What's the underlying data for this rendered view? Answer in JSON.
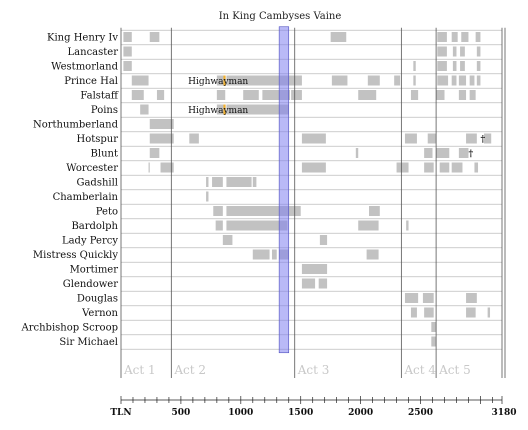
{
  "chart_data": {
    "type": "gantt",
    "title": "In King Cambyses Vaine",
    "xlabel": "TLN",
    "xlim": [
      0,
      3180
    ],
    "xticks_labeled": [
      500,
      1000,
      1500,
      2000,
      2500
    ],
    "xtick_major_step": 100,
    "xmax_label": "3180",
    "acts": [
      {
        "name": "Act 1",
        "start": 0,
        "end": 420
      },
      {
        "name": "Act 2",
        "start": 420,
        "end": 1450
      },
      {
        "name": "Act 3",
        "start": 1450,
        "end": 2340
      },
      {
        "name": "Act 4",
        "start": 2340,
        "end": 2630
      },
      {
        "name": "Act 5",
        "start": 2630,
        "end": 3180
      }
    ],
    "highlight": {
      "start": 1320,
      "end": 1400,
      "color": "#8080f0"
    },
    "colors": {
      "bar": "#c2c2c2",
      "accent": "#f0b030",
      "grid": "#bdbdbd",
      "act_line": "#555555"
    },
    "characters": [
      {
        "name": "King Henry Iv",
        "spans": [
          [
            20,
            90
          ],
          [
            240,
            320
          ],
          [
            1750,
            1880
          ],
          [
            2640,
            2720
          ],
          [
            2760,
            2810
          ],
          [
            2840,
            2900
          ],
          [
            2960,
            3000
          ]
        ]
      },
      {
        "name": "Lancaster",
        "spans": [
          [
            20,
            90
          ],
          [
            2640,
            2720
          ],
          [
            2770,
            2800
          ],
          [
            2830,
            2870
          ],
          [
            2970,
            3000
          ]
        ]
      },
      {
        "name": "Westmorland",
        "spans": [
          [
            20,
            90
          ],
          [
            2440,
            2460
          ],
          [
            2640,
            2720
          ],
          [
            2770,
            2800
          ],
          [
            2830,
            2870
          ],
          [
            2970,
            3000
          ]
        ]
      },
      {
        "name": "Prince Hal",
        "spans": [
          [
            90,
            230
          ],
          [
            800,
            870
          ],
          [
            880,
            1510
          ],
          [
            1760,
            1890
          ],
          [
            2060,
            2160
          ],
          [
            2280,
            2330
          ],
          [
            2440,
            2460
          ],
          [
            2640,
            2730
          ],
          [
            2760,
            2800
          ],
          [
            2820,
            2880
          ],
          [
            2910,
            2950
          ],
          [
            2970,
            3000
          ]
        ]
      },
      {
        "name": "Falstaff",
        "spans": [
          [
            90,
            190
          ],
          [
            300,
            360
          ],
          [
            800,
            870
          ],
          [
            1020,
            1150
          ],
          [
            1180,
            1410
          ],
          [
            1420,
            1500
          ],
          [
            1490,
            1510
          ],
          [
            1980,
            2130
          ],
          [
            2420,
            2480
          ],
          [
            2630,
            2700
          ],
          [
            2820,
            2880
          ],
          [
            2910,
            2960
          ]
        ]
      },
      {
        "name": "Poins",
        "spans": [
          [
            160,
            230
          ],
          [
            800,
            870
          ],
          [
            880,
            1400
          ]
        ]
      },
      {
        "name": "Northumberland",
        "spans": [
          [
            240,
            440
          ]
        ]
      },
      {
        "name": "Hotspur",
        "spans": [
          [
            240,
            440
          ],
          [
            570,
            650
          ],
          [
            1510,
            1710
          ],
          [
            2370,
            2470
          ],
          [
            2560,
            2630
          ],
          [
            2880,
            2970
          ],
          [
            3030,
            3090
          ]
        ]
      },
      {
        "name": "Blunt",
        "spans": [
          [
            240,
            320
          ],
          [
            1960,
            1980
          ],
          [
            2530,
            2600
          ],
          [
            2630,
            2740
          ],
          [
            2820,
            2900
          ]
        ]
      },
      {
        "name": "Worcester",
        "spans": [
          [
            230,
            240
          ],
          [
            330,
            440
          ],
          [
            1510,
            1710
          ],
          [
            2300,
            2400
          ],
          [
            2530,
            2610
          ],
          [
            2660,
            2740
          ],
          [
            2760,
            2850
          ],
          [
            2950,
            2980
          ]
        ]
      },
      {
        "name": "Gadshill",
        "spans": [
          [
            710,
            730
          ],
          [
            760,
            850
          ],
          [
            880,
            1090
          ],
          [
            1100,
            1130
          ]
        ]
      },
      {
        "name": "Chamberlain",
        "spans": [
          [
            710,
            730
          ]
        ]
      },
      {
        "name": "Peto",
        "spans": [
          [
            770,
            850
          ],
          [
            880,
            1500
          ],
          [
            2070,
            2160
          ]
        ]
      },
      {
        "name": "Bardolph",
        "spans": [
          [
            790,
            850
          ],
          [
            880,
            1390
          ],
          [
            1980,
            2150
          ],
          [
            2380,
            2400
          ]
        ]
      },
      {
        "name": "Lady Percy",
        "spans": [
          [
            850,
            930
          ],
          [
            1660,
            1720
          ]
        ]
      },
      {
        "name": "Mistress Quickly",
        "spans": [
          [
            1100,
            1240
          ],
          [
            1260,
            1300
          ],
          [
            1320,
            1400
          ],
          [
            2050,
            2150
          ]
        ]
      },
      {
        "name": "Mortimer",
        "spans": [
          [
            1510,
            1720
          ]
        ]
      },
      {
        "name": "Glendower",
        "spans": [
          [
            1510,
            1620
          ],
          [
            1650,
            1720
          ]
        ]
      },
      {
        "name": "Douglas",
        "spans": [
          [
            2370,
            2480
          ],
          [
            2520,
            2610
          ],
          [
            2880,
            2970
          ]
        ]
      },
      {
        "name": "Vernon",
        "spans": [
          [
            2420,
            2470
          ],
          [
            2530,
            2610
          ],
          [
            2880,
            2960
          ],
          [
            3060,
            3080
          ]
        ]
      },
      {
        "name": "Archbishop Scroop",
        "spans": [
          [
            2590,
            2630
          ]
        ]
      },
      {
        "name": "Sir Michael",
        "spans": [
          [
            2590,
            2630
          ]
        ]
      }
    ],
    "annotations": [
      {
        "text": "Highwayman",
        "row": "Prince Hal",
        "x": 560
      },
      {
        "text": "Highwayman",
        "row": "Poins",
        "x": 560
      },
      {
        "text": "†",
        "row": "Hotspur",
        "x": 3020
      },
      {
        "text": "†",
        "row": "Blunt",
        "x": 2920
      }
    ],
    "accent_marks": [
      {
        "row": "Prince Hal",
        "x": 855
      },
      {
        "row": "Poins",
        "x": 855
      }
    ]
  }
}
